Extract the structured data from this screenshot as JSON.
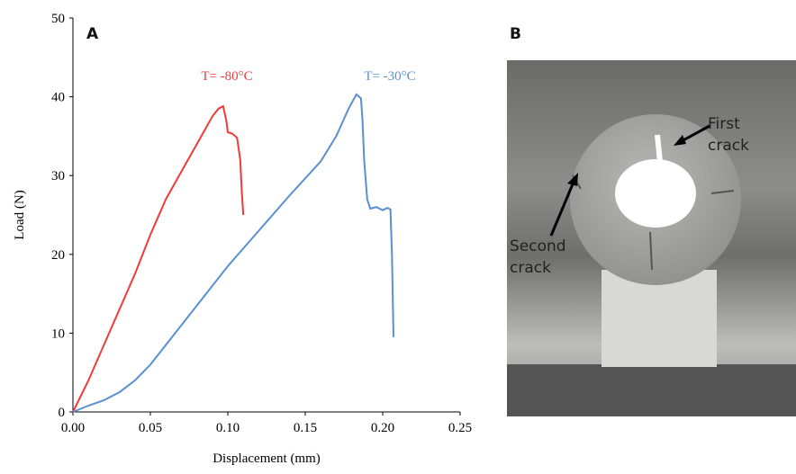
{
  "chart_data": {
    "type": "line",
    "xlabel": "Displacement (mm)",
    "ylabel": "Load (N)",
    "xlim": [
      0,
      0.25
    ],
    "xticks": [
      {
        "value": 0,
        "label": "0.00"
      },
      {
        "value": 0.05,
        "label": "0.05"
      },
      {
        "value": 0.1,
        "label": "0.10"
      },
      {
        "value": 0.15,
        "label": "0.15"
      },
      {
        "value": 0.2,
        "label": "0.20"
      },
      {
        "value": 0.25,
        "label": "0.25"
      }
    ],
    "ylim": [
      0,
      50
    ],
    "yticks": [
      0,
      10,
      20,
      30,
      40,
      50
    ],
    "series": [
      {
        "name": "T= -80°C",
        "color": "#ee3b3b",
        "x": [
          0,
          0.01,
          0.02,
          0.03,
          0.04,
          0.05,
          0.06,
          0.07,
          0.08,
          0.09,
          0.094,
          0.097,
          0.099,
          0.1,
          0.103,
          0.106,
          0.108,
          0.109,
          0.11
        ],
        "values": [
          0,
          4,
          8.5,
          13,
          17.5,
          22.5,
          27,
          30.5,
          34,
          37.5,
          38.5,
          38.8,
          37,
          35.5,
          35.3,
          34.8,
          32,
          28,
          25
        ]
      },
      {
        "name": "T= -30°C",
        "color": "#5b8fd0",
        "x": [
          0,
          0.01,
          0.02,
          0.03,
          0.04,
          0.05,
          0.06,
          0.08,
          0.1,
          0.12,
          0.14,
          0.16,
          0.17,
          0.178,
          0.183,
          0.186,
          0.187,
          0.188,
          0.19,
          0.192,
          0.196,
          0.2,
          0.203,
          0.205,
          0.206,
          0.207
        ],
        "values": [
          0,
          0.8,
          1.5,
          2.5,
          4,
          6,
          8.5,
          13.5,
          18.5,
          23,
          27.5,
          31.8,
          35,
          38.5,
          40.3,
          39.8,
          37,
          32,
          27,
          25.8,
          26,
          25.6,
          25.9,
          25.7,
          20,
          9.5
        ]
      }
    ]
  },
  "panel_labels": [
    "A",
    "B"
  ],
  "photo_labels": [
    "First crack",
    "Second crack"
  ]
}
